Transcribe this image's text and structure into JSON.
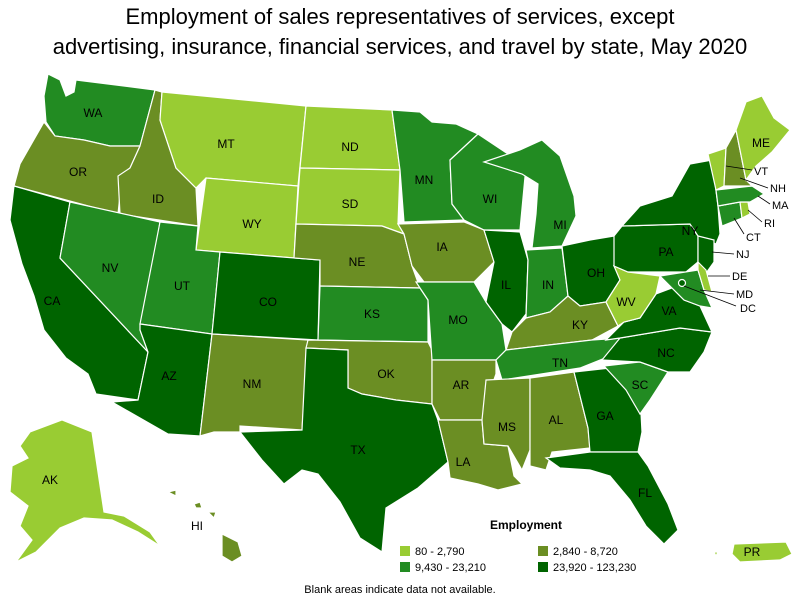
{
  "title_line1": "Employment of sales representatives of services, except",
  "title_line2": "advertising, insurance, financial services, and travel by state, May 2020",
  "colors": {
    "c1": "#99cc33",
    "c2": "#6b8e23",
    "c3": "#228b22",
    "c4": "#006400"
  },
  "legend": {
    "title": "Employment",
    "items": [
      {
        "label": "80 - 2,790",
        "color": "#99cc33"
      },
      {
        "label": "2,840 - 8,720",
        "color": "#6b8e23"
      },
      {
        "label": "9,430 - 23,210",
        "color": "#228b22"
      },
      {
        "label": "23,920 - 123,230",
        "color": "#006400"
      }
    ]
  },
  "note": "Blank areas indicate data not available.",
  "states": {
    "WA": {
      "label": "WA",
      "class": "c3"
    },
    "OR": {
      "label": "OR",
      "class": "c2"
    },
    "CA": {
      "label": "CA",
      "class": "c4"
    },
    "ID": {
      "label": "ID",
      "class": "c2"
    },
    "NV": {
      "label": "NV",
      "class": "c3"
    },
    "MT": {
      "label": "MT",
      "class": "c1"
    },
    "WY": {
      "label": "WY",
      "class": "c1"
    },
    "UT": {
      "label": "UT",
      "class": "c3"
    },
    "AZ": {
      "label": "AZ",
      "class": "c4"
    },
    "CO": {
      "label": "CO",
      "class": "c4"
    },
    "NM": {
      "label": "NM",
      "class": "c2"
    },
    "ND": {
      "label": "ND",
      "class": "c1"
    },
    "SD": {
      "label": "SD",
      "class": "c1"
    },
    "NE": {
      "label": "NE",
      "class": "c2"
    },
    "KS": {
      "label": "KS",
      "class": "c3"
    },
    "OK": {
      "label": "OK",
      "class": "c2"
    },
    "TX": {
      "label": "TX",
      "class": "c4"
    },
    "MN": {
      "label": "MN",
      "class": "c3"
    },
    "IA": {
      "label": "IA",
      "class": "c2"
    },
    "MO": {
      "label": "MO",
      "class": "c3"
    },
    "AR": {
      "label": "AR",
      "class": "c2"
    },
    "LA": {
      "label": "LA",
      "class": "c2"
    },
    "WI": {
      "label": "WI",
      "class": "c3"
    },
    "IL": {
      "label": "IL",
      "class": "c4"
    },
    "MI": {
      "label": "MI",
      "class": "c3"
    },
    "IN": {
      "label": "IN",
      "class": "c3"
    },
    "OH": {
      "label": "OH",
      "class": "c4"
    },
    "KY": {
      "label": "KY",
      "class": "c2"
    },
    "TN": {
      "label": "TN",
      "class": "c3"
    },
    "MS": {
      "label": "MS",
      "class": "c2"
    },
    "AL": {
      "label": "AL",
      "class": "c2"
    },
    "GA": {
      "label": "GA",
      "class": "c4"
    },
    "FL": {
      "label": "FL",
      "class": "c4"
    },
    "SC": {
      "label": "SC",
      "class": "c3"
    },
    "NC": {
      "label": "NC",
      "class": "c4"
    },
    "VA": {
      "label": "VA",
      "class": "c4"
    },
    "WV": {
      "label": "WV",
      "class": "c1"
    },
    "PA": {
      "label": "PA",
      "class": "c4"
    },
    "NY": {
      "label": "NY",
      "class": "c4"
    },
    "ME": {
      "label": "ME",
      "class": "c1"
    },
    "VT": {
      "label": "VT",
      "class": "c1"
    },
    "NH": {
      "label": "NH",
      "class": "c2"
    },
    "MA": {
      "label": "MA",
      "class": "c3"
    },
    "RI": {
      "label": "RI",
      "class": "c1"
    },
    "CT": {
      "label": "CT",
      "class": "c3"
    },
    "NJ": {
      "label": "NJ",
      "class": "c4"
    },
    "DE": {
      "label": "DE",
      "class": "c1"
    },
    "MD": {
      "label": "MD",
      "class": "c3"
    },
    "DC": {
      "label": "DC",
      "class": "c4"
    },
    "AK": {
      "label": "AK",
      "class": "c1"
    },
    "HI": {
      "label": "HI",
      "class": "c2"
    },
    "PR": {
      "label": "PR",
      "class": "c1"
    }
  }
}
